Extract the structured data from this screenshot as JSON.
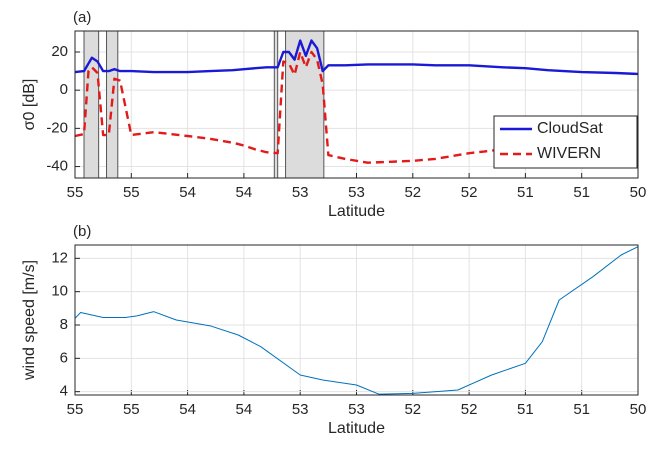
{
  "chart_data": [
    {
      "type": "line",
      "panel_label": "(a)",
      "xlabel": "Latitude",
      "ylabel": "σ0 [dB]",
      "xlim": [
        55,
        50
      ],
      "ylim": [
        -46,
        31
      ],
      "xticks": [
        55,
        {
          "value": 54.5,
          "label": "55"
        },
        54,
        {
          "value": 53.5,
          "label": "54"
        },
        53,
        {
          "value": 52.5,
          "label": "53"
        },
        52,
        {
          "value": 51.5,
          "label": "52"
        },
        51,
        {
          "value": 50.5,
          "label": "51"
        },
        50
      ],
      "yticks": [
        -40,
        -20,
        0,
        20
      ],
      "grid": true,
      "legend": "lower right",
      "shaded_regions": [
        [
          54.92,
          54.79
        ],
        [
          54.72,
          54.62
        ],
        [
          53.23,
          53.2
        ],
        [
          53.13,
          52.79
        ]
      ],
      "x": [
        55,
        54.92,
        54.88,
        54.85,
        54.8,
        54.75,
        54.7,
        54.65,
        54.6,
        54.5,
        54.3,
        54,
        53.8,
        53.6,
        53.5,
        53.4,
        53.3,
        53.2,
        53.15,
        53.1,
        53.05,
        53.0,
        52.95,
        52.9,
        52.85,
        52.8,
        52.75,
        52.6,
        52.4,
        52.2,
        52.0,
        51.8,
        51.5,
        51.2,
        51.0,
        50.8,
        50.5,
        50.2,
        50.0
      ],
      "series": [
        {
          "name": "CloudSat",
          "color": "#1a1ad6",
          "linestyle": "solid",
          "values": [
            9.5,
            10,
            14,
            17,
            15,
            10,
            10,
            11,
            10,
            10,
            9.5,
            9.5,
            10,
            10.5,
            11,
            11.5,
            12,
            12,
            20,
            20,
            16,
            26,
            18,
            26,
            22,
            10,
            13,
            13,
            13.5,
            13.5,
            13.5,
            13,
            13,
            12,
            11.5,
            10.5,
            9.5,
            9,
            8.5
          ]
        },
        {
          "name": "WIVERN",
          "color": "#e31a1a",
          "linestyle": "dashed",
          "values": [
            -24,
            -23,
            10,
            12,
            9,
            -23.5,
            -23.5,
            6,
            5,
            -23.5,
            -22,
            -24,
            -25.5,
            -27.5,
            -29,
            -31,
            -32.5,
            -33,
            15,
            14,
            8,
            20,
            12,
            20,
            16,
            3,
            -34,
            -36,
            -38,
            -37.5,
            -37,
            -36,
            -33,
            -31,
            -30,
            -31,
            -31,
            -29,
            -28
          ]
        }
      ]
    },
    {
      "type": "line",
      "panel_label": "(b)",
      "xlabel": "Latitude",
      "ylabel": "wind speed [m/s]",
      "xlim": [
        55,
        50
      ],
      "ylim": [
        3.8,
        12.8
      ],
      "xticks": [
        55,
        {
          "value": 54.5,
          "label": "55"
        },
        54,
        {
          "value": 53.5,
          "label": "54"
        },
        53,
        {
          "value": 52.5,
          "label": "53"
        },
        52,
        {
          "value": 51.5,
          "label": "52"
        },
        51,
        {
          "value": 50.5,
          "label": "51"
        },
        50
      ],
      "yticks": [
        4,
        6,
        8,
        10,
        12
      ],
      "grid": true,
      "x": [
        55,
        54.95,
        54.75,
        54.55,
        54.45,
        54.3,
        54.1,
        53.8,
        53.55,
        53.35,
        53.0,
        52.8,
        52.5,
        52.3,
        52.0,
        51.6,
        51.3,
        51.0,
        50.85,
        50.7,
        50.4,
        50.15,
        50.0
      ],
      "series": [
        {
          "name": "wind speed",
          "color": "#0072bd",
          "linestyle": "solid",
          "values": [
            8.4,
            8.75,
            8.45,
            8.45,
            8.55,
            8.8,
            8.3,
            7.95,
            7.4,
            6.7,
            5.0,
            4.7,
            4.4,
            3.85,
            3.9,
            4.1,
            5.0,
            5.7,
            7.0,
            9.5,
            10.9,
            12.2,
            12.7
          ]
        }
      ]
    }
  ]
}
